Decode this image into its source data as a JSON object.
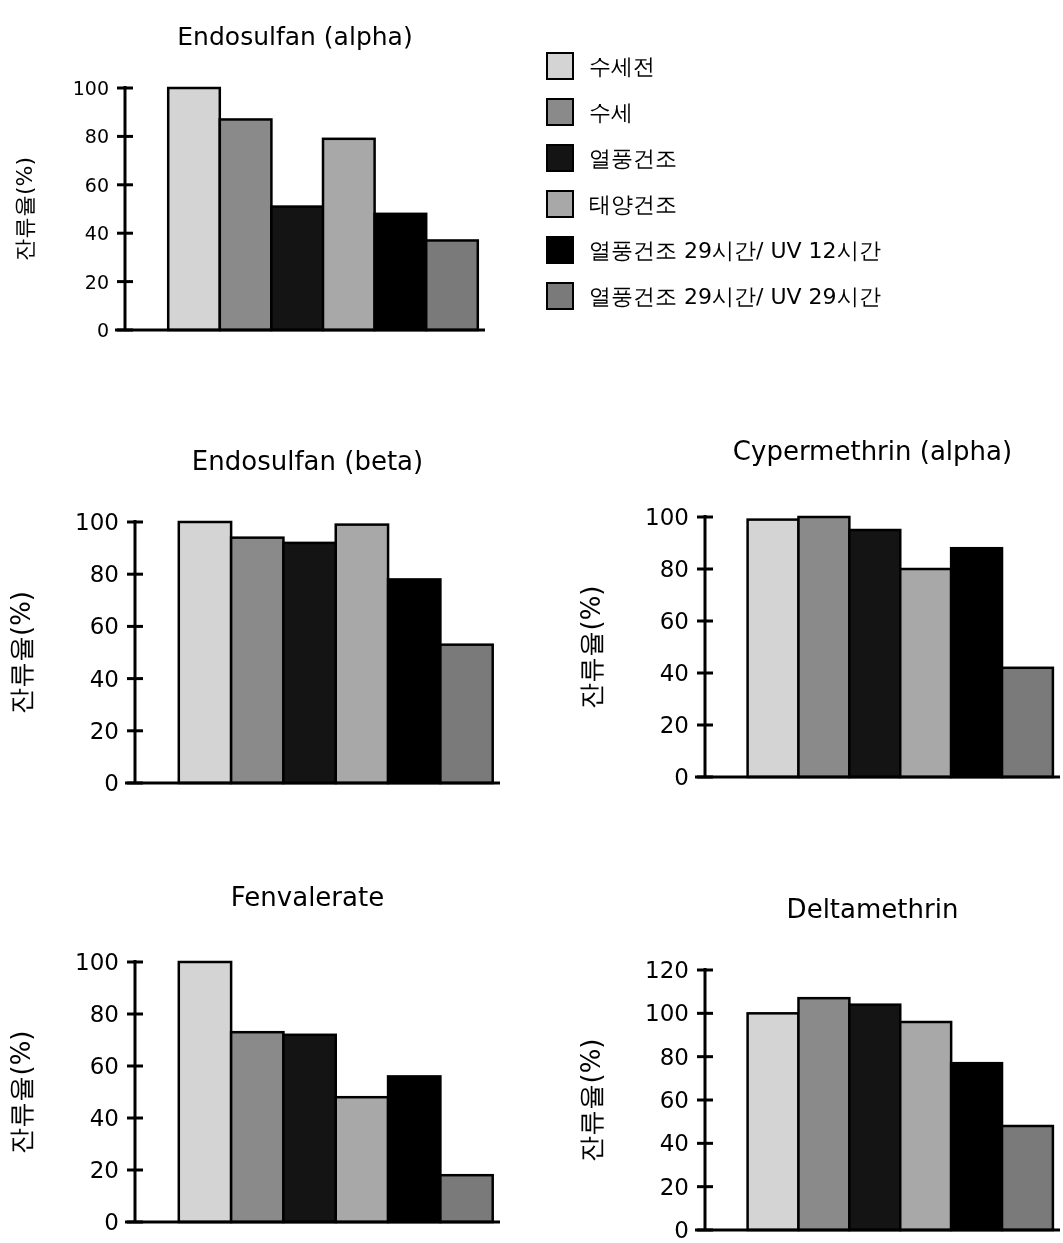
{
  "chart_data": [
    {
      "type": "bar",
      "title": "Endosulfan (alpha)",
      "ylabel": "잔류율(%)",
      "categories": [
        null
      ],
      "ylim": [
        0,
        100
      ],
      "yticks": [
        0,
        20,
        40,
        60,
        80,
        100
      ],
      "legend": "right",
      "grid": false,
      "series": [
        {
          "name": "수세전",
          "color": "#d4d4d4",
          "values": [
            100
          ]
        },
        {
          "name": "수세",
          "color": "#8a8a8a",
          "values": [
            87
          ]
        },
        {
          "name": "열풍건조",
          "color": "#141414",
          "values": [
            51
          ]
        },
        {
          "name": "태양건조",
          "color": "#a8a8a8",
          "values": [
            79
          ]
        },
        {
          "name": "열풍건조 29시간/ UV 12시간",
          "color": "#000000",
          "values": [
            48
          ]
        },
        {
          "name": "열풍건조 29시간/ UV 29시간",
          "color": "#7a7a7a",
          "values": [
            37
          ]
        }
      ]
    },
    {
      "type": "bar",
      "title": "Endosulfan (beta)",
      "ylabel": "잔류율(%)",
      "categories": [
        null
      ],
      "ylim": [
        0,
        100
      ],
      "yticks": [
        0,
        20,
        40,
        60,
        80,
        100
      ],
      "grid": false,
      "series": [
        {
          "color": "#d4d4d4",
          "values": [
            100
          ]
        },
        {
          "color": "#8a8a8a",
          "values": [
            94
          ]
        },
        {
          "color": "#141414",
          "values": [
            92
          ]
        },
        {
          "color": "#a8a8a8",
          "values": [
            99
          ]
        },
        {
          "color": "#000000",
          "values": [
            78
          ]
        },
        {
          "color": "#7a7a7a",
          "values": [
            53
          ]
        }
      ]
    },
    {
      "type": "bar",
      "title": "Cypermethrin (alpha)",
      "ylabel": "잔류율(%)",
      "categories": [
        null
      ],
      "ylim": [
        0,
        100
      ],
      "yticks": [
        0,
        20,
        40,
        60,
        80,
        100
      ],
      "grid": false,
      "series": [
        {
          "color": "#d4d4d4",
          "values": [
            99
          ]
        },
        {
          "color": "#8a8a8a",
          "values": [
            100
          ]
        },
        {
          "color": "#141414",
          "values": [
            95
          ]
        },
        {
          "color": "#a8a8a8",
          "values": [
            80
          ]
        },
        {
          "color": "#000000",
          "values": [
            88
          ]
        },
        {
          "color": "#7a7a7a",
          "values": [
            42
          ]
        }
      ]
    },
    {
      "type": "bar",
      "title": "Fenvalerate",
      "ylabel": "잔류율(%)",
      "categories": [
        null
      ],
      "ylim": [
        0,
        100
      ],
      "yticks": [
        0,
        20,
        40,
        60,
        80,
        100
      ],
      "grid": false,
      "series": [
        {
          "color": "#d4d4d4",
          "values": [
            100
          ]
        },
        {
          "color": "#8a8a8a",
          "values": [
            73
          ]
        },
        {
          "color": "#141414",
          "values": [
            72
          ]
        },
        {
          "color": "#a8a8a8",
          "values": [
            48
          ]
        },
        {
          "color": "#000000",
          "values": [
            56
          ]
        },
        {
          "color": "#7a7a7a",
          "values": [
            18
          ]
        }
      ]
    },
    {
      "type": "bar",
      "title": "Deltamethrin",
      "ylabel": "잔류율(%)",
      "categories": [
        null
      ],
      "ylim": [
        0,
        120
      ],
      "yticks": [
        0,
        20,
        40,
        60,
        80,
        100,
        120
      ],
      "grid": false,
      "series": [
        {
          "color": "#d4d4d4",
          "values": [
            100
          ]
        },
        {
          "color": "#8a8a8a",
          "values": [
            107
          ]
        },
        {
          "color": "#141414",
          "values": [
            104
          ]
        },
        {
          "color": "#a8a8a8",
          "values": [
            96
          ]
        },
        {
          "color": "#000000",
          "values": [
            77
          ]
        },
        {
          "color": "#7a7a7a",
          "values": [
            48
          ]
        }
      ]
    }
  ]
}
